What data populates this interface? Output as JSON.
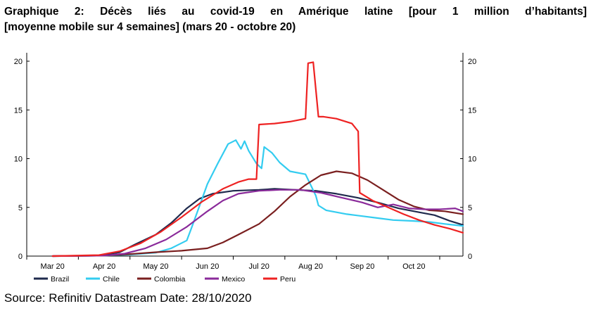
{
  "title_line1": "Graphique 2: Décès liés au covid-19 en Amérique latine [pour 1 million d’habitants]",
  "title_line2": "[moyenne mobile sur 4 semaines] (mars 20 - octobre 20)",
  "source": "Source: Refinitiv Datastream Date: 28/10/2020",
  "chart_data": {
    "type": "line",
    "title": "Graphique 2: Décès liés au covid-19 en Amérique latine [pour 1 million d’habitants] [moyenne mobile sur 4 semaines] (mars 20 - octobre 20)",
    "xlabel": "",
    "ylabel": "",
    "ylim": [
      0,
      20
    ],
    "yticks": [
      0,
      5,
      10,
      15,
      20
    ],
    "x_tick_labels": [
      "Mar 20",
      "Apr 20",
      "May 20",
      "Jun 20",
      "Jul 20",
      "Aug 20",
      "Sep 20",
      "Oct 20"
    ],
    "x_unit": "months since 2020-03-01",
    "x_range": [
      -0.5,
      7.95
    ],
    "grid": false,
    "secondary_axis": true,
    "legend_position": "bottom",
    "series": [
      {
        "name": "Brazil",
        "color": "#1f2a4d",
        "x": [
          0,
          0.9,
          1.3,
          1.6,
          2.0,
          2.3,
          2.6,
          2.85,
          3.1,
          3.5,
          4.0,
          4.3,
          4.7,
          5.1,
          5.5,
          5.9,
          6.3,
          6.7,
          7.1,
          7.4,
          7.7,
          7.95
        ],
        "y": [
          0,
          0.05,
          0.4,
          1.2,
          2.2,
          3.4,
          4.9,
          5.9,
          6.4,
          6.7,
          6.8,
          6.9,
          6.8,
          6.7,
          6.4,
          6.0,
          5.5,
          4.9,
          4.5,
          4.2,
          3.6,
          3.2
        ]
      },
      {
        "name": "Chile",
        "color": "#33ccf0",
        "x": [
          0,
          1.0,
          1.5,
          2.0,
          2.3,
          2.6,
          2.7,
          2.85,
          3.0,
          3.2,
          3.4,
          3.55,
          3.65,
          3.72,
          3.8,
          3.95,
          4.05,
          4.1,
          4.25,
          4.4,
          4.6,
          4.9,
          5.1,
          5.15,
          5.3,
          5.7,
          6.0,
          6.3,
          6.6,
          7.0,
          7.3,
          7.6,
          7.95
        ],
        "y": [
          0,
          0.05,
          0.15,
          0.35,
          0.8,
          1.6,
          3.0,
          5.2,
          7.4,
          9.5,
          11.5,
          11.9,
          11.0,
          11.8,
          10.8,
          9.5,
          9.0,
          11.2,
          10.6,
          9.6,
          8.7,
          8.4,
          6.2,
          5.2,
          4.7,
          4.3,
          4.1,
          3.9,
          3.7,
          3.6,
          3.5,
          3.3,
          3.1
        ]
      },
      {
        "name": "Colombia",
        "color": "#7a1f1f",
        "x": [
          0,
          1.0,
          1.5,
          2.0,
          2.5,
          3.0,
          3.3,
          3.6,
          4.0,
          4.3,
          4.6,
          4.9,
          5.2,
          5.5,
          5.8,
          6.1,
          6.4,
          6.7,
          7.0,
          7.3,
          7.6,
          7.95
        ],
        "y": [
          0,
          0.05,
          0.2,
          0.4,
          0.55,
          0.8,
          1.4,
          2.2,
          3.3,
          4.6,
          6.1,
          7.3,
          8.3,
          8.7,
          8.5,
          7.8,
          6.8,
          5.8,
          5.1,
          4.7,
          4.6,
          4.3
        ]
      },
      {
        "name": "Mexico",
        "color": "#8a2a9a",
        "x": [
          0,
          1.0,
          1.4,
          1.8,
          2.2,
          2.6,
          3.0,
          3.3,
          3.6,
          4.0,
          4.4,
          4.8,
          5.2,
          5.6,
          6.0,
          6.3,
          6.6,
          6.9,
          7.2,
          7.5,
          7.8,
          7.95
        ],
        "y": [
          0,
          0.05,
          0.25,
          0.8,
          1.7,
          3.0,
          4.6,
          5.7,
          6.4,
          6.7,
          6.8,
          6.8,
          6.5,
          6.0,
          5.5,
          5.0,
          5.3,
          4.9,
          4.8,
          4.8,
          4.9,
          4.6
        ]
      },
      {
        "name": "Peru",
        "color": "#ee2222",
        "x": [
          0,
          0.9,
          1.3,
          1.7,
          2.1,
          2.5,
          2.9,
          3.3,
          3.6,
          3.8,
          3.95,
          4.0,
          4.3,
          4.6,
          4.9,
          4.95,
          5.05,
          5.15,
          5.25,
          5.5,
          5.8,
          5.92,
          5.95,
          6.2,
          6.5,
          6.8,
          7.1,
          7.4,
          7.7,
          7.95
        ],
        "y": [
          0,
          0.1,
          0.5,
          1.3,
          2.5,
          4.0,
          5.6,
          6.9,
          7.6,
          7.9,
          7.9,
          13.5,
          13.6,
          13.8,
          14.1,
          19.8,
          19.9,
          14.3,
          14.3,
          14.1,
          13.6,
          12.8,
          6.5,
          5.7,
          5.0,
          4.3,
          3.7,
          3.2,
          2.8,
          2.4
        ]
      }
    ]
  }
}
